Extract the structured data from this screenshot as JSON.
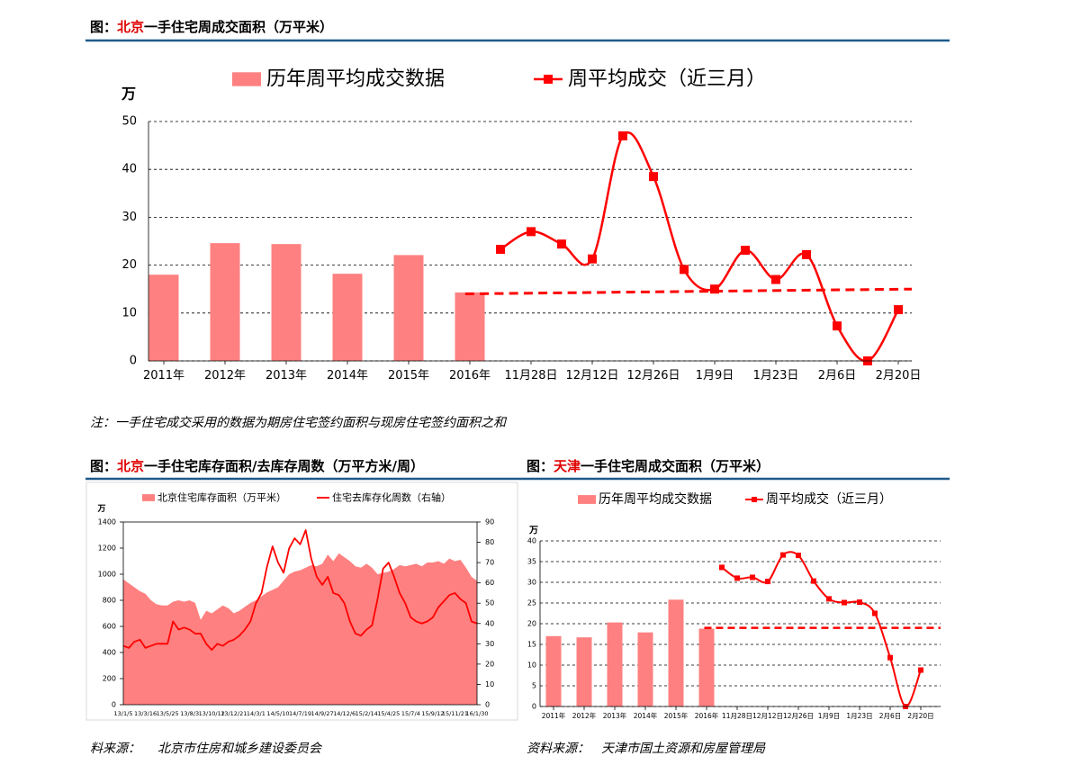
{
  "headers": [
    {
      "prefix": "图：",
      "highlight": "北京",
      "text": "一手住宅周成交面积（万平米）"
    },
    {
      "prefix": "图：",
      "highlight": "北京",
      "text": "一手住宅库存面积/去库存周数（万平方米/周）"
    },
    {
      "prefix": "图：",
      "highlight": "天津",
      "text": "一手住宅周成交面积（万平米）"
    }
  ],
  "note": "注：一手住宅成交采用的数据为期房住宅签约面积与现房住宅签约面积之和",
  "sources": [
    {
      "label": "料来源：",
      "text": "北京市住房和城乡建设委员会"
    },
    {
      "label": "资料来源：",
      "text": "天津市国土资源和房屋管理局"
    }
  ],
  "chart_data": [
    {
      "type": "combo",
      "y_unit": "万",
      "categories": [
        "2011年",
        "2012年",
        "2013年",
        "2014年",
        "2015年",
        "2016年",
        null,
        "11月28日",
        null,
        "12月12日",
        null,
        "12月26日",
        null,
        "1月9日",
        null,
        "1月23日",
        null,
        "2月6日",
        null,
        "2月20日"
      ],
      "series": [
        {
          "name": "历年周平均成交数据",
          "type": "bar",
          "color": "#ff8080",
          "values": [
            18,
            24.6,
            24.4,
            18.2,
            22.1,
            14.3,
            null,
            null,
            null,
            null,
            null,
            null,
            null,
            null,
            null,
            null,
            null,
            null,
            null,
            null
          ]
        },
        {
          "name": "周平均成交（近三月）",
          "type": "line",
          "color": "#ff0000",
          "values": [
            null,
            null,
            null,
            null,
            null,
            null,
            23.3,
            27,
            24.4,
            21.3,
            47,
            38.5,
            19.1,
            15,
            23.1,
            17,
            22.2,
            7.3,
            0,
            10.7
          ]
        }
      ],
      "trendline": {
        "color": "#ff0000",
        "values": [
          14,
          15
        ]
      },
      "ylim": [
        0,
        50
      ],
      "yticks": [
        0,
        10,
        20,
        30,
        40,
        50
      ],
      "grid": true
    },
    {
      "type": "area",
      "y_unit": "万",
      "categories": [
        "13/1/5",
        null,
        null,
        null,
        "13/3/16",
        null,
        null,
        null,
        "13/5/25",
        null,
        null,
        null,
        "13/8/3",
        null,
        null,
        null,
        "13/10/12",
        null,
        null,
        null,
        "13/12/21",
        null,
        null,
        null,
        "14/3/1",
        null,
        null,
        null,
        "14/5/10",
        null,
        null,
        null,
        "14/7/19",
        null,
        null,
        null,
        "14/9/27",
        null,
        null,
        null,
        "14/12/6",
        null,
        null,
        null,
        "15/2/14",
        null,
        null,
        null,
        "15/4/25",
        null,
        null,
        null,
        "15/7/4",
        null,
        null,
        null,
        "15/9/12",
        null,
        null,
        null,
        "15/11/21",
        null,
        null,
        null,
        "16/1/30"
      ],
      "series": [
        {
          "name": "北京住宅库存面积（万平米）",
          "type": "area",
          "color": "#ff8080",
          "values": [
            960,
            930,
            900,
            870,
            850,
            800,
            770,
            760,
            760,
            790,
            800,
            790,
            800,
            780,
            650,
            720,
            700,
            730,
            760,
            740,
            700,
            720,
            750,
            780,
            800,
            830,
            860,
            880,
            900,
            950,
            1000,
            1020,
            1030,
            1050,
            1070,
            1060,
            1080,
            1150,
            1100,
            1160,
            1130,
            1100,
            1060,
            1050,
            1080,
            1050,
            1000,
            1010,
            1020,
            1040,
            1070,
            1060,
            1070,
            1080,
            1060,
            1090,
            1090,
            1100,
            1080,
            1120,
            1100,
            1110,
            1050,
            980,
            950
          ]
        },
        {
          "name": "住宅去库存化周数（右轴）",
          "type": "line",
          "axis": "y2",
          "color": "#ff0000",
          "values": [
            29,
            28,
            31,
            32,
            28,
            29,
            30,
            30,
            30,
            41,
            37,
            38,
            37,
            35,
            35,
            30,
            27,
            30,
            29,
            31,
            32,
            34,
            37,
            41,
            50,
            55,
            68,
            78,
            70,
            65,
            77,
            82,
            79,
            86,
            72,
            63,
            59,
            63,
            55,
            54,
            50,
            41,
            35,
            34,
            37,
            39,
            52,
            67,
            70,
            63,
            55,
            50,
            43,
            41,
            40,
            41,
            43,
            48,
            51,
            54,
            55,
            52,
            50,
            41,
            40
          ]
        }
      ],
      "ylim": [
        0,
        1400
      ],
      "yticks": [
        0,
        200,
        400,
        600,
        800,
        1000,
        1200,
        1400
      ],
      "y2lim": [
        0,
        90
      ],
      "y2ticks": [
        0,
        10,
        20,
        30,
        40,
        50,
        60,
        70,
        80,
        90
      ],
      "grid": false
    },
    {
      "type": "combo",
      "y_unit": "万",
      "categories": [
        "2011年",
        "2012年",
        "2013年",
        "2014年",
        "2015年",
        "2016年",
        null,
        "11月28日",
        null,
        "12月12日",
        null,
        "12月26日",
        null,
        "1月9日",
        null,
        "1月23日",
        null,
        "2月6日",
        null,
        "2月20日"
      ],
      "series": [
        {
          "name": "历年周平均成交数据",
          "type": "bar",
          "color": "#ff8080",
          "values": [
            17,
            16.7,
            20.3,
            17.9,
            25.8,
            18.8,
            null,
            null,
            null,
            null,
            null,
            null,
            null,
            null,
            null,
            null,
            null,
            null,
            null,
            null
          ]
        },
        {
          "name": "周平均成交（近三月）",
          "type": "line",
          "color": "#ff0000",
          "values": [
            null,
            null,
            null,
            null,
            null,
            null,
            33.6,
            31,
            31.2,
            30.2,
            36.6,
            36.5,
            30.3,
            26,
            25.1,
            25.2,
            22.5,
            11.8,
            0,
            8.8
          ]
        }
      ],
      "trendline": {
        "color": "#ff0000",
        "values": [
          19,
          19
        ]
      },
      "ylim": [
        0,
        40
      ],
      "yticks": [
        0,
        5,
        10,
        15,
        20,
        25,
        30,
        35,
        40
      ],
      "grid": true
    }
  ]
}
